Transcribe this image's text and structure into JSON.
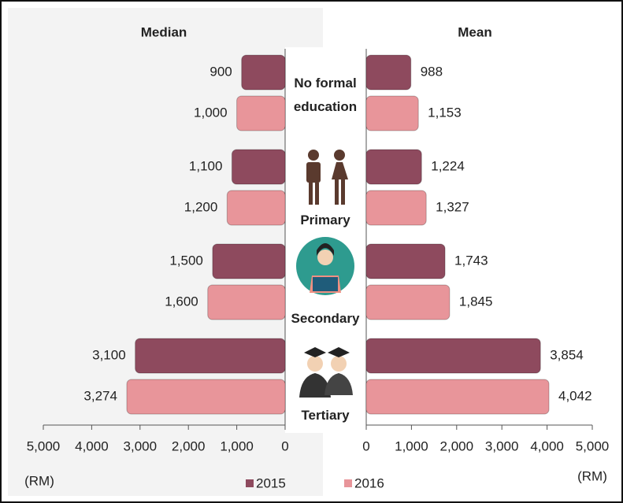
{
  "chart_data": [
    {
      "type": "bar",
      "orientation": "horizontal",
      "x_reversed": true,
      "title": "Median",
      "x_label": "(RM)",
      "categories": [
        "No formal education",
        "Primary",
        "Secondary",
        "Tertiary"
      ],
      "series": [
        {
          "name": "2015",
          "color": "#8e4a5e",
          "values": [
            900,
            1100,
            1500,
            3100
          ],
          "value_labels": [
            "900",
            "1,100",
            "1,500",
            "3,100"
          ]
        },
        {
          "name": "2016",
          "color": "#e8959a",
          "values": [
            1000,
            1200,
            1600,
            3274
          ],
          "value_labels": [
            "1,000",
            "1,200",
            "1,600",
            "3,274"
          ]
        }
      ],
      "xlim": [
        0,
        5000
      ],
      "xticks": [
        0,
        {
          "value": 1000,
          "label": "1,000"
        },
        {
          "value": 2000,
          "label": "2,000"
        },
        {
          "value": 3000,
          "label": "3,000"
        },
        {
          "value": 4000,
          "label": "4,000"
        },
        {
          "value": 5000,
          "label": "5,000"
        }
      ]
    },
    {
      "type": "bar",
      "orientation": "horizontal",
      "x_reversed": false,
      "title": "Mean",
      "x_label": "(RM)",
      "series": [
        {
          "color": "#8e4a5e",
          "values": [
            988,
            1224,
            1743,
            3854
          ],
          "value_labels": [
            "988",
            "1,224",
            "1,743",
            "3,854"
          ]
        },
        {
          "color": "#e8959a",
          "values": [
            1153,
            1327,
            1845,
            4042
          ],
          "value_labels": [
            "1,153",
            "1,327",
            "1,845",
            "4,042"
          ]
        }
      ],
      "xlim": [
        0,
        5000
      ],
      "xticks": [
        0,
        {
          "value": 1000,
          "label": "1,000"
        },
        {
          "value": 2000,
          "label": "2,000"
        },
        {
          "value": 3000,
          "label": "3,000"
        },
        {
          "value": 4000,
          "label": "4,000"
        },
        {
          "value": 5000,
          "label": "5,000"
        }
      ]
    }
  ]
}
